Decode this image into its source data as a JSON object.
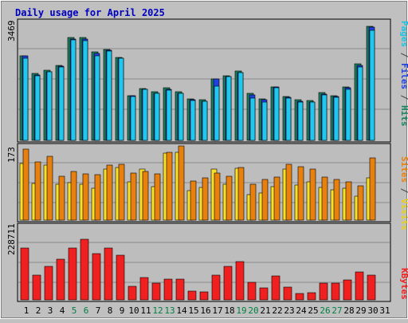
{
  "title": "Daily usage for April 2025",
  "colors": {
    "background": "#c0c0c0",
    "plot_bg": "#bdbdbd",
    "title": "#0000c0",
    "hits": "#1a8060",
    "files": "#2040e0",
    "pages": "#20c8f0",
    "visits": "#e88010",
    "sites": "#f8e028",
    "kbytes": "#f02020",
    "weekend_label": "#008040",
    "weekday_label": "#000000"
  },
  "chart_data": [
    {
      "type": "bar",
      "panel": "hits-files-pages",
      "ylabel_parts": [
        {
          "text": "Pages",
          "color": "#20c0e0"
        },
        {
          "text": " / ",
          "color": "#404040"
        },
        {
          "text": "Files",
          "color": "#2040e0"
        },
        {
          "text": " / ",
          "color": "#404040"
        },
        {
          "text": "Hits",
          "color": "#1a8060"
        }
      ],
      "ymax_label": "3469",
      "ylim": [
        0,
        3469
      ],
      "categories": [
        "1",
        "2",
        "3",
        "4",
        "5",
        "6",
        "7",
        "8",
        "9",
        "10",
        "11",
        "12",
        "13",
        "14",
        "15",
        "16",
        "17",
        "18",
        "19",
        "20",
        "21",
        "22",
        "23",
        "24",
        "25",
        "26",
        "27",
        "28",
        "29",
        "30",
        "31"
      ],
      "weekend_days": [
        "5",
        "6",
        "12",
        "13",
        "19",
        "20",
        "26",
        "27"
      ],
      "series": [
        {
          "name": "Hits",
          "values": [
            2450,
            1940,
            2040,
            2180,
            2980,
            2980,
            2560,
            2640,
            2410,
            1300,
            1510,
            1410,
            1520,
            1410,
            1200,
            1180,
            1790,
            1880,
            2010,
            1360,
            1210,
            1560,
            1270,
            1180,
            1150,
            1380,
            1290,
            1560,
            2220,
            3310,
            0
          ],
          "files_equal_pages": false
        },
        {
          "name": "Files",
          "values": [
            2450,
            1890,
            2000,
            2150,
            2930,
            2940,
            2520,
            2610,
            2380,
            1290,
            1470,
            1360,
            1490,
            1370,
            1170,
            1140,
            1780,
            1860,
            1970,
            1320,
            1180,
            1540,
            1240,
            1140,
            1120,
            1350,
            1270,
            1520,
            2180,
            3280,
            0
          ]
        },
        {
          "name": "Pages",
          "values": [
            2390,
            1880,
            1990,
            2130,
            2910,
            2900,
            2450,
            2590,
            2380,
            1280,
            1470,
            1360,
            1460,
            1360,
            1160,
            1130,
            1580,
            1840,
            1960,
            1230,
            1110,
            1530,
            1230,
            1100,
            1100,
            1320,
            1260,
            1490,
            2130,
            3200,
            0
          ]
        }
      ]
    },
    {
      "type": "bar",
      "panel": "visits-sites",
      "ylabel_parts": [
        {
          "text": "Sites",
          "color": "#e88010"
        },
        {
          "text": " / ",
          "color": "#404040"
        },
        {
          "text": "Visits",
          "color": "#e8d020"
        }
      ],
      "ymax_label": "173",
      "ylim": [
        0,
        173
      ],
      "categories": [
        "1",
        "2",
        "3",
        "4",
        "5",
        "6",
        "7",
        "8",
        "9",
        "10",
        "11",
        "12",
        "13",
        "14",
        "15",
        "16",
        "17",
        "18",
        "19",
        "20",
        "21",
        "22",
        "23",
        "24",
        "25",
        "26",
        "27",
        "28",
        "29",
        "30",
        "31"
      ],
      "series": [
        {
          "name": "Visits",
          "values": [
            131,
            85,
            127,
            82,
            87,
            82,
            74,
            117,
            122,
            88,
            117,
            78,
            155,
            157,
            69,
            75,
            117,
            83,
            120,
            58,
            63,
            77,
            117,
            81,
            88,
            76,
            70,
            73,
            56,
            98,
            0
          ]
        },
        {
          "name": "Sites",
          "values": [
            164,
            134,
            147,
            102,
            112,
            107,
            104,
            127,
            128,
            108,
            112,
            107,
            157,
            171,
            91,
            97,
            108,
            102,
            122,
            82,
            94,
            100,
            128,
            123,
            118,
            100,
            94,
            88,
            80,
            144,
            0
          ]
        }
      ]
    },
    {
      "type": "bar",
      "panel": "kbytes",
      "ylabel_parts": [
        {
          "text": "KBytes",
          "color": "#f02020"
        }
      ],
      "ymax_label": "228711",
      "ylim": [
        0,
        228711
      ],
      "categories": [
        "1",
        "2",
        "3",
        "4",
        "5",
        "6",
        "7",
        "8",
        "9",
        "10",
        "11",
        "12",
        "13",
        "14",
        "15",
        "16",
        "17",
        "18",
        "19",
        "20",
        "21",
        "22",
        "23",
        "24",
        "25",
        "26",
        "27",
        "28",
        "29",
        "30",
        "31"
      ],
      "series": [
        {
          "name": "KBytes",
          "values": [
            176000,
            84000,
            114000,
            136000,
            176000,
            205000,
            157000,
            174000,
            150000,
            45000,
            76000,
            56000,
            69000,
            69000,
            30000,
            26000,
            83000,
            112000,
            129000,
            58000,
            39000,
            80000,
            43000,
            21000,
            23000,
            56000,
            56000,
            68000,
            95000,
            83000,
            0
          ]
        }
      ]
    }
  ]
}
